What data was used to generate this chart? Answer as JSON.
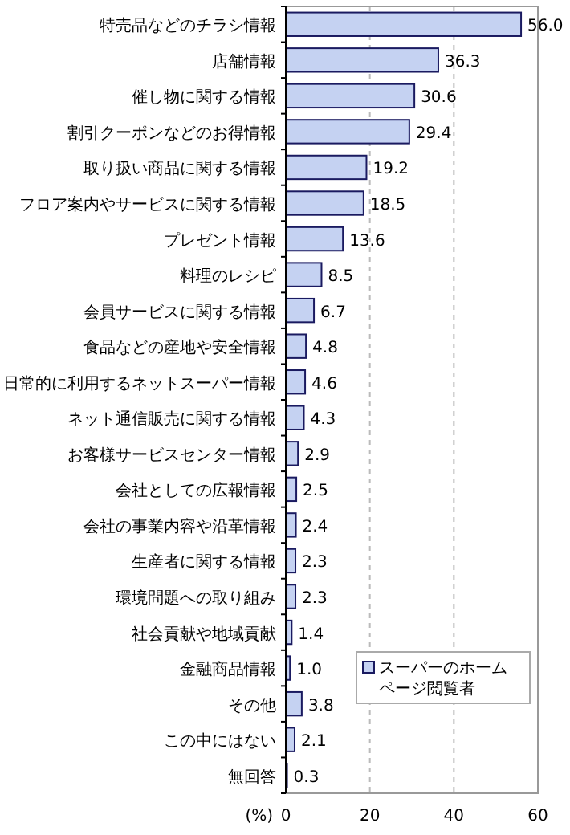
{
  "chart_data": {
    "type": "bar",
    "orientation": "horizontal",
    "categories": [
      "特売品などのチラシ情報",
      "店舗情報",
      "催し物に関する情報",
      "割引クーポンなどのお得情報",
      "取り扱い商品に関する情報",
      "フロア案内やサービスに関する情報",
      "プレゼント情報",
      "料理のレシピ",
      "会員サービスに関する情報",
      "食品などの産地や安全情報",
      "日常的に利用するネットスーパー情報",
      "ネット通信販売に関する情報",
      "お客様サービスセンター情報",
      "会社としての広報情報",
      "会社の事業内容や沿革情報",
      "生産者に関する情報",
      "環境問題への取り組み",
      "社会貢献や地域貢献",
      "金融商品情報",
      "その他",
      "この中にはない",
      "無回答"
    ],
    "series": [
      {
        "name": "スーパーのホームページ閲覧者",
        "color": "#c5d2f2",
        "values": [
          56.0,
          36.3,
          30.6,
          29.4,
          19.2,
          18.5,
          13.6,
          8.5,
          6.7,
          4.8,
          4.6,
          4.3,
          2.9,
          2.5,
          2.4,
          2.3,
          2.3,
          1.4,
          1.0,
          3.8,
          2.1,
          0.3
        ],
        "value_labels": [
          "56.0",
          "36.3",
          "30.6",
          "29.4",
          "19.2",
          "18.5",
          "13.6",
          "8.5",
          "6.7",
          "4.8",
          "4.6",
          "4.3",
          "2.9",
          "2.5",
          "2.4",
          "2.3",
          "2.3",
          "1.4",
          "1.0",
          "3.8",
          "2.1",
          "0.3"
        ]
      }
    ],
    "xlim": [
      0,
      60
    ],
    "xticks": [
      0,
      20,
      40,
      60
    ],
    "xlabel": "(%)",
    "grid": "x",
    "legend": "bottom right"
  }
}
